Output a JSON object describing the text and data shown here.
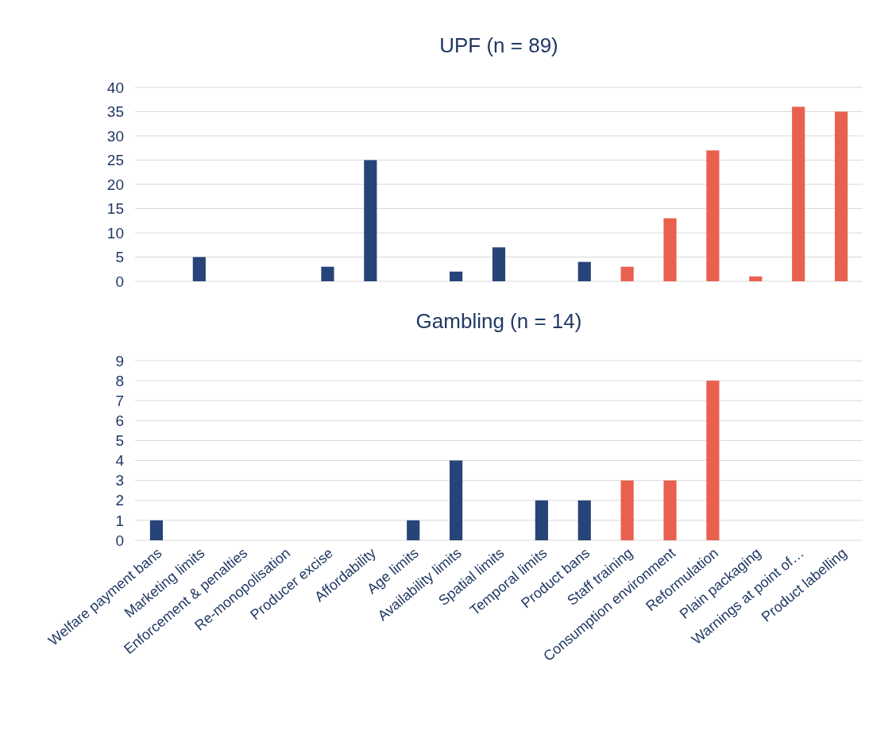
{
  "chart_data": [
    {
      "type": "bar",
      "title": "UPF (n = 89)",
      "categories": [
        null,
        null,
        null,
        null,
        null,
        null,
        null,
        null,
        null,
        null,
        null,
        null,
        null,
        null,
        null,
        null,
        null
      ],
      "values": [
        0,
        5,
        0,
        0,
        3,
        25,
        0,
        2,
        7,
        0,
        4,
        3,
        13,
        27,
        1,
        36,
        35
      ],
      "colors": [
        "#264478",
        "#264478",
        "#264478",
        "#264478",
        "#264478",
        "#264478",
        "#264478",
        "#264478",
        "#264478",
        "#264478",
        "#264478",
        "#e9604f",
        "#e9604f",
        "#e9604f",
        "#e9604f",
        "#e9604f",
        "#e9604f"
      ],
      "ylim": [
        0,
        40
      ],
      "yticks": [
        0,
        5,
        10,
        15,
        20,
        25,
        30,
        35,
        40
      ],
      "grid": "y",
      "tick_labels": "y"
    },
    {
      "type": "bar",
      "title": "Gambling (n = 14)",
      "categories": [
        "Welfare payment bans",
        "Marketing limits",
        "Enforcement & penalties",
        "Re-monopolisation",
        "Producer excise",
        "Affordability",
        "Age limits",
        "Availability limits",
        "Spatial limits",
        "Temporal limits",
        "Product bans",
        "Staff training",
        "Consumption environment",
        "Reformulation",
        "Plain packaging",
        "Warnings at point of…",
        "Product labelling"
      ],
      "values": [
        1,
        0,
        0,
        0,
        0,
        0,
        1,
        4,
        0,
        2,
        2,
        3,
        3,
        8,
        0,
        0,
        0
      ],
      "colors": [
        "#264478",
        "#264478",
        "#264478",
        "#264478",
        "#264478",
        "#264478",
        "#264478",
        "#264478",
        "#264478",
        "#264478",
        "#264478",
        "#e9604f",
        "#e9604f",
        "#e9604f",
        "#e9604f",
        "#e9604f",
        "#e9604f"
      ],
      "ylim": [
        0,
        9
      ],
      "yticks": [
        0,
        1,
        2,
        3,
        4,
        5,
        6,
        7,
        8,
        9
      ],
      "grid": "y"
    }
  ]
}
